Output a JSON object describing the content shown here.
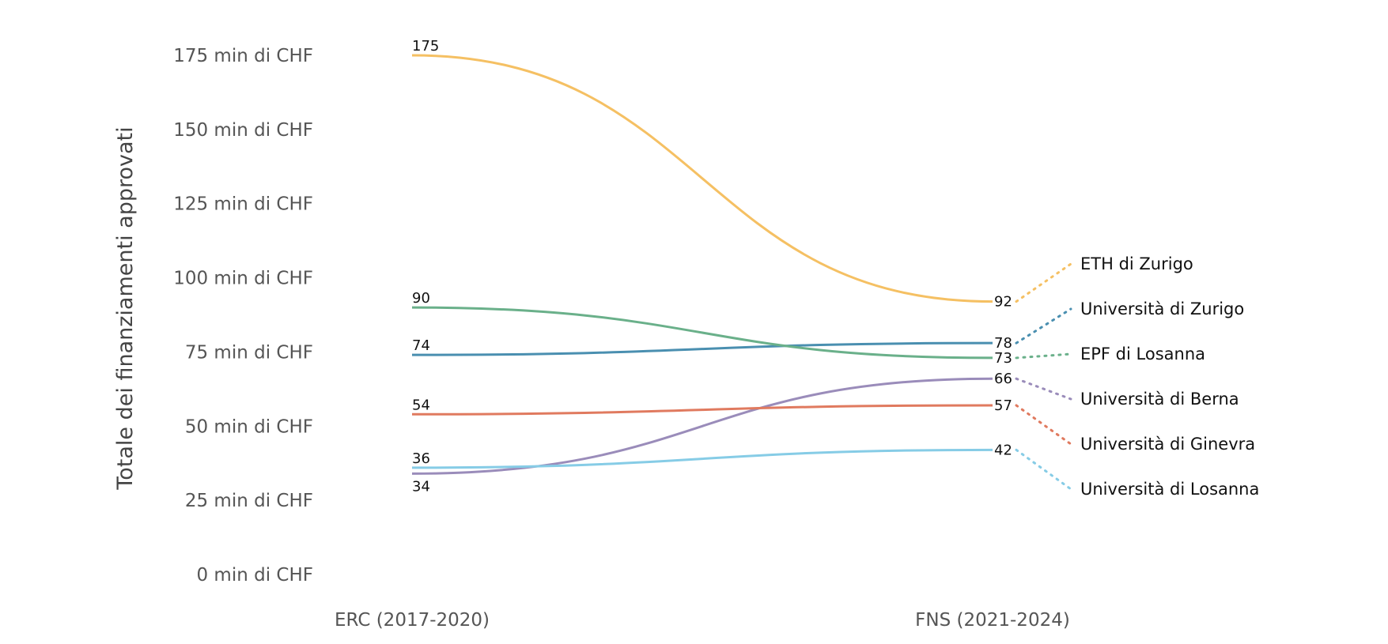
{
  "chart_data": {
    "type": "line",
    "ylabel": "Totale dei finanziamenti approvati",
    "categories": [
      "ERC (2017-2020)",
      "FNS (2021-2024)"
    ],
    "yticks": [
      "0 min di CHF",
      "25 min di CHF",
      "50 min di CHF",
      "75 min di CHF",
      "100 min di CHF",
      "125 min di CHF",
      "150 min di CHF",
      "175 min di CHF"
    ],
    "ylim": [
      0,
      175
    ],
    "grid": false,
    "legend": "right (direct labels)",
    "series": [
      {
        "name": "ETH di Zurigo",
        "values": [
          175,
          92
        ],
        "color": "#f5c063"
      },
      {
        "name": "Università di Zurigo",
        "values": [
          74,
          78
        ],
        "color": "#4a8fb0"
      },
      {
        "name": "EPF di Losanna",
        "values": [
          90,
          73
        ],
        "color": "#6ab08a"
      },
      {
        "name": "Università di Berna",
        "values": [
          34,
          66
        ],
        "color": "#9a8cba"
      },
      {
        "name": "Università di Ginevra",
        "values": [
          54,
          57
        ],
        "color": "#e07a5f"
      },
      {
        "name": "Università di Losanna",
        "values": [
          36,
          42
        ],
        "color": "#86cce6"
      }
    ]
  }
}
